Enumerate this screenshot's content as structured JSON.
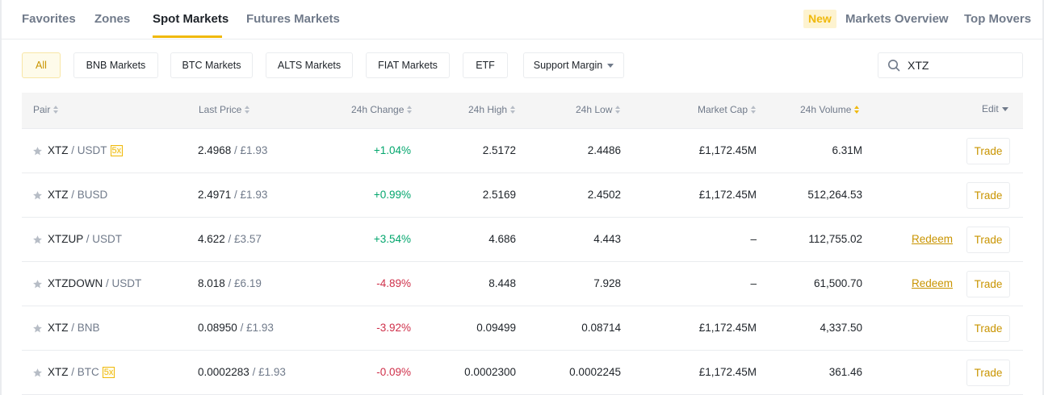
{
  "tabs": {
    "favorites": "Favorites",
    "zones": "Zones",
    "spot": "Spot Markets",
    "futures": "Futures Markets",
    "new_badge": "New",
    "overview": "Markets Overview",
    "top_movers": "Top Movers"
  },
  "filters": {
    "all": "All",
    "bnb": "BNB Markets",
    "btc": "BTC Markets",
    "alts": "ALTS Markets",
    "fiat": "FIAT Markets",
    "etf": "ETF",
    "margin": "Support Margin"
  },
  "search": {
    "value": "XTZ",
    "icon": "search-icon"
  },
  "headers": {
    "pair": "Pair",
    "last_price": "Last Price",
    "change": "24h Change",
    "high": "24h High",
    "low": "24h Low",
    "market_cap": "Market Cap",
    "volume": "24h Volume",
    "edit": "Edit"
  },
  "colors": {
    "accent": "#f0b90b",
    "up": "#03a66d",
    "down": "#cf304a"
  },
  "rows": [
    {
      "base": "XTZ",
      "quote": " / USDT",
      "leverage": "5x",
      "price": "2.4968",
      "fiat": " / £1.93",
      "change": "+1.04%",
      "high": "2.5172",
      "low": "2.4486",
      "cap": "£1,172.45M",
      "volume": "6.31M",
      "redeem": "",
      "trade": "Trade"
    },
    {
      "base": "XTZ",
      "quote": " / BUSD",
      "leverage": "",
      "price": "2.4971",
      "fiat": " / £1.93",
      "change": "+0.99%",
      "high": "2.5169",
      "low": "2.4502",
      "cap": "£1,172.45M",
      "volume": "512,264.53",
      "redeem": "",
      "trade": "Trade"
    },
    {
      "base": "XTZUP",
      "quote": " / USDT",
      "leverage": "",
      "price": "4.622",
      "fiat": " / £3.57",
      "change": "+3.54%",
      "high": "4.686",
      "low": "4.443",
      "cap": "–",
      "volume": "112,755.02",
      "redeem": "Redeem",
      "trade": "Trade"
    },
    {
      "base": "XTZDOWN",
      "quote": " / USDT",
      "leverage": "",
      "price": "8.018",
      "fiat": " / £6.19",
      "change": "-4.89%",
      "high": "8.448",
      "low": "7.928",
      "cap": "–",
      "volume": "61,500.70",
      "redeem": "Redeem",
      "trade": "Trade"
    },
    {
      "base": "XTZ",
      "quote": " / BNB",
      "leverage": "",
      "price": "0.08950",
      "fiat": " / £1.93",
      "change": "-3.92%",
      "high": "0.09499",
      "low": "0.08714",
      "cap": "£1,172.45M",
      "volume": "4,337.50",
      "redeem": "",
      "trade": "Trade"
    },
    {
      "base": "XTZ",
      "quote": " / BTC",
      "leverage": "5x",
      "price": "0.0002283",
      "fiat": " / £1.93",
      "change": "-0.09%",
      "high": "0.0002300",
      "low": "0.0002245",
      "cap": "£1,172.45M",
      "volume": "361.46",
      "redeem": "",
      "trade": "Trade"
    }
  ]
}
